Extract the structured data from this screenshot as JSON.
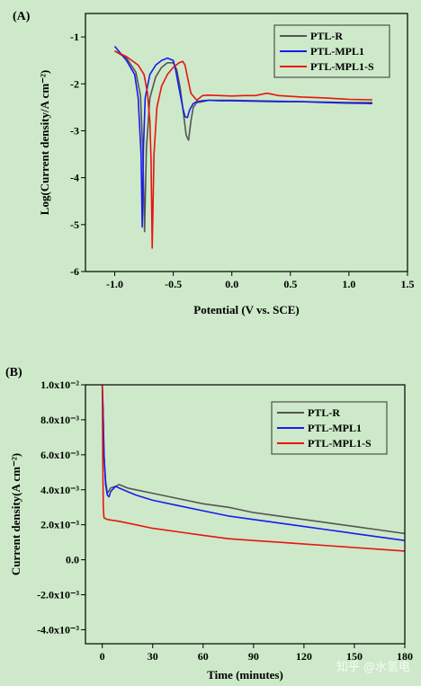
{
  "chart_data": [
    {
      "panel": "(A)",
      "type": "line",
      "xlabel": "Potential (V vs. SCE)",
      "ylabel": "Log(Current density/A cm⁻²)",
      "xlim": [
        -1.25,
        1.5
      ],
      "ylim": [
        -6,
        -0.5
      ],
      "x_ticks": [
        -1.0,
        -0.5,
        0.0,
        0.5,
        1.0,
        1.5
      ],
      "x_tick_labels": [
        "-1.0",
        "-0.5",
        "0.0",
        "0.5",
        "1.0",
        "1.5"
      ],
      "y_ticks": [
        -1,
        -2,
        -3,
        -4,
        -5,
        -6
      ],
      "y_tick_labels": [
        "-1",
        "-2",
        "-3",
        "-4",
        "-5",
        "-6"
      ],
      "grid": false,
      "legend_position": "top-right",
      "series": [
        {
          "name": "PTL-R",
          "color": "#555555",
          "x": [
            -1.0,
            -0.9,
            -0.82,
            -0.78,
            -0.76,
            -0.745,
            -0.73,
            -0.7,
            -0.65,
            -0.6,
            -0.55,
            -0.5,
            -0.47,
            -0.44,
            -0.41,
            -0.39,
            -0.37,
            -0.35,
            -0.33,
            -0.3,
            -0.25,
            -0.2,
            -0.1,
            0.0,
            0.2,
            0.4,
            0.6,
            0.8,
            1.0,
            1.2
          ],
          "y": [
            -1.3,
            -1.45,
            -1.75,
            -2.25,
            -3.5,
            -5.15,
            -3.4,
            -2.3,
            -1.85,
            -1.65,
            -1.55,
            -1.55,
            -1.7,
            -2.1,
            -2.7,
            -3.1,
            -3.2,
            -2.8,
            -2.5,
            -2.4,
            -2.38,
            -2.35,
            -2.35,
            -2.35,
            -2.36,
            -2.37,
            -2.38,
            -2.39,
            -2.4,
            -2.4
          ]
        },
        {
          "name": "PTL-MPL1",
          "color": "#1a1aee",
          "x": [
            -1.0,
            -0.9,
            -0.83,
            -0.8,
            -0.775,
            -0.765,
            -0.755,
            -0.74,
            -0.7,
            -0.65,
            -0.6,
            -0.55,
            -0.5,
            -0.48,
            -0.45,
            -0.42,
            -0.4,
            -0.38,
            -0.36,
            -0.33,
            -0.3,
            -0.25,
            -0.2,
            -0.1,
            0.0,
            0.2,
            0.4,
            0.6,
            0.8,
            1.0,
            1.2
          ],
          "y": [
            -1.2,
            -1.5,
            -1.8,
            -2.3,
            -3.5,
            -5.05,
            -3.4,
            -2.3,
            -1.8,
            -1.6,
            -1.5,
            -1.45,
            -1.5,
            -1.7,
            -2.1,
            -2.5,
            -2.7,
            -2.72,
            -2.55,
            -2.42,
            -2.38,
            -2.36,
            -2.35,
            -2.36,
            -2.36,
            -2.37,
            -2.38,
            -2.38,
            -2.4,
            -2.41,
            -2.42
          ]
        },
        {
          "name": "PTL-MPL1-S",
          "color": "#e8140f",
          "x": [
            -1.0,
            -0.9,
            -0.8,
            -0.75,
            -0.72,
            -0.7,
            -0.69,
            -0.68,
            -0.665,
            -0.64,
            -0.6,
            -0.55,
            -0.5,
            -0.45,
            -0.42,
            -0.4,
            -0.38,
            -0.35,
            -0.3,
            -0.25,
            -0.2,
            -0.1,
            0.0,
            0.1,
            0.2,
            0.3,
            0.4,
            0.6,
            0.8,
            1.0,
            1.2
          ],
          "y": [
            -1.3,
            -1.42,
            -1.6,
            -1.8,
            -2.2,
            -2.8,
            -3.6,
            -5.5,
            -3.5,
            -2.5,
            -2.05,
            -1.8,
            -1.65,
            -1.55,
            -1.52,
            -1.6,
            -1.85,
            -2.2,
            -2.35,
            -2.25,
            -2.24,
            -2.25,
            -2.26,
            -2.25,
            -2.25,
            -2.2,
            -2.25,
            -2.28,
            -2.3,
            -2.33,
            -2.34
          ]
        }
      ]
    },
    {
      "panel": "(B)",
      "type": "line",
      "xlabel": "Time (minutes)",
      "ylabel": "Current density(A cm⁻²)",
      "xlim": [
        -10,
        180
      ],
      "ylim": [
        -0.0048,
        0.01
      ],
      "x_ticks": [
        0,
        30,
        60,
        90,
        120,
        150,
        180
      ],
      "x_tick_labels": [
        "0",
        "30",
        "60",
        "90",
        "120",
        "150",
        "180"
      ],
      "y_ticks": [
        0.01,
        0.008,
        0.006,
        0.004,
        0.002,
        0.0,
        -0.002,
        -0.004
      ],
      "y_tick_labels": [
        "1.0x10⁻²",
        "8.0x10⁻³",
        "6.0x10⁻³",
        "4.0x10⁻³",
        "2.0x10⁻³",
        "0.0",
        "-2.0x10⁻³",
        "-4.0x10⁻³"
      ],
      "grid": false,
      "legend_position": "top-right",
      "series": [
        {
          "name": "PTL-R",
          "color": "#555555",
          "x": [
            0,
            0.5,
            1,
            2,
            3,
            5,
            8,
            10,
            15,
            20,
            30,
            45,
            60,
            75,
            90,
            105,
            120,
            135,
            150,
            165,
            180
          ],
          "y": [
            0.01,
            0.0085,
            0.006,
            0.0045,
            0.0038,
            0.0041,
            0.0042,
            0.0043,
            0.0041,
            0.004,
            0.0038,
            0.0035,
            0.0032,
            0.003,
            0.0027,
            0.0025,
            0.0023,
            0.0021,
            0.0019,
            0.0017,
            0.0015
          ]
        },
        {
          "name": "PTL-MPL1",
          "color": "#1a1aee",
          "x": [
            0,
            0.5,
            1,
            2,
            3,
            4,
            5,
            8,
            10,
            15,
            20,
            30,
            45,
            60,
            75,
            90,
            105,
            120,
            135,
            150,
            165,
            180
          ],
          "y": [
            0.01,
            0.0085,
            0.006,
            0.0043,
            0.0037,
            0.0036,
            0.0039,
            0.0042,
            0.0041,
            0.0039,
            0.0037,
            0.0034,
            0.0031,
            0.0028,
            0.0025,
            0.0023,
            0.0021,
            0.0019,
            0.0017,
            0.0015,
            0.0013,
            0.0011
          ]
        },
        {
          "name": "PTL-MPL1-S",
          "color": "#e8140f",
          "x": [
            0,
            0.3,
            0.6,
            1,
            3,
            10,
            20,
            30,
            45,
            60,
            75,
            90,
            105,
            120,
            135,
            150,
            165,
            180
          ],
          "y": [
            0.01,
            0.006,
            0.003,
            0.0024,
            0.0023,
            0.0022,
            0.002,
            0.0018,
            0.0016,
            0.0014,
            0.0012,
            0.0011,
            0.001,
            0.0009,
            0.0008,
            0.0007,
            0.0006,
            0.0005
          ]
        }
      ]
    }
  ],
  "watermark": "知乎 @水氢电"
}
